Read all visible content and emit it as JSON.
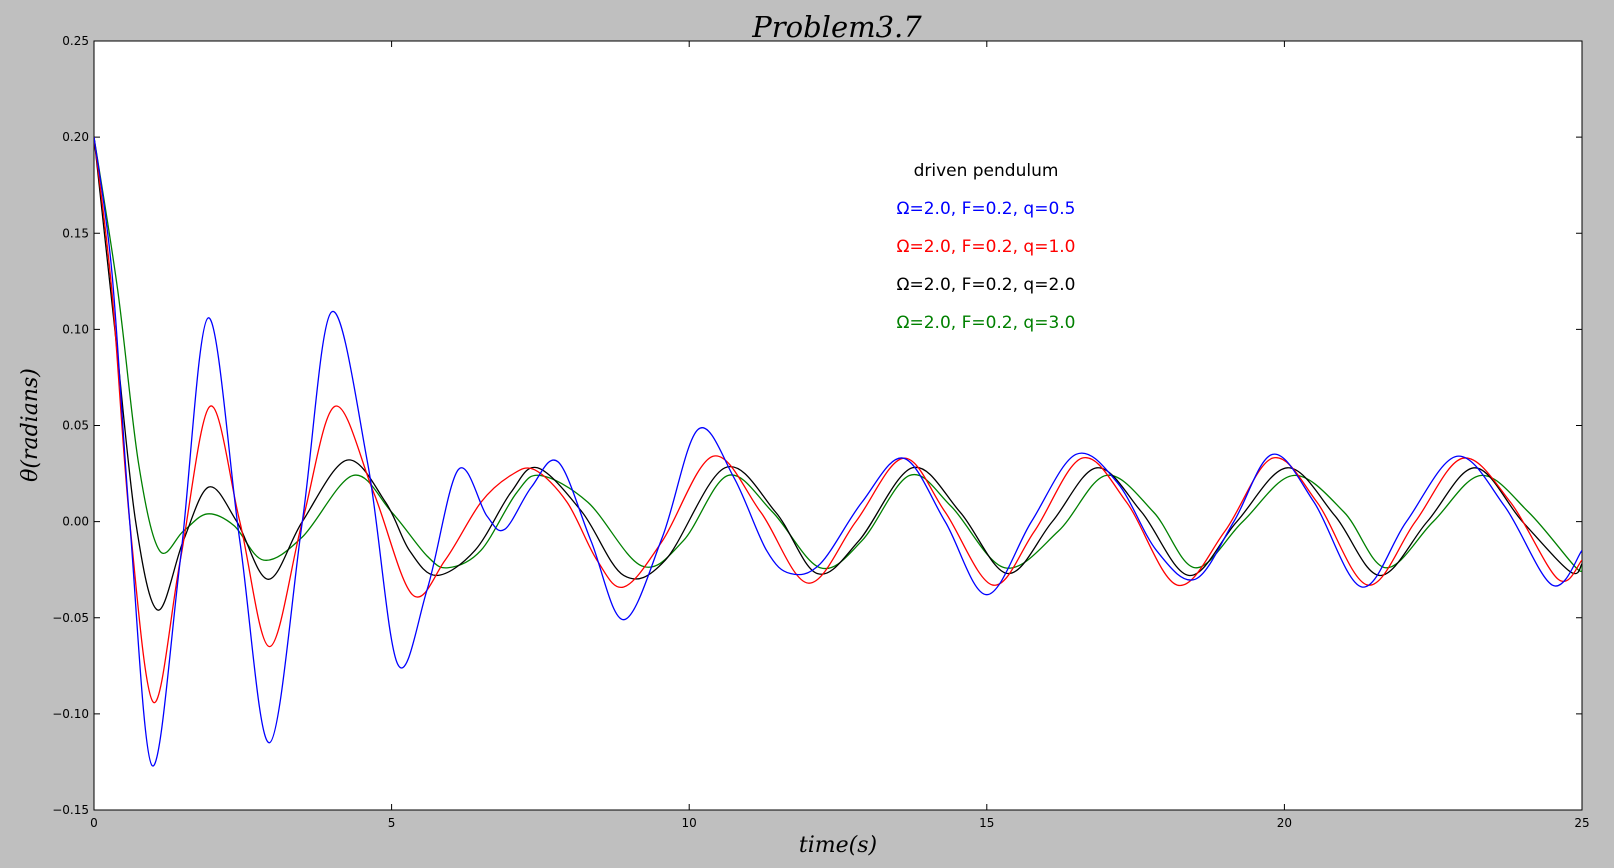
{
  "chart_data": {
    "type": "line",
    "title": "Problem3.7",
    "xlabel": "time(s)",
    "ylabel": "θ(radians)",
    "xlim": [
      0,
      25
    ],
    "ylim": [
      -0.15,
      0.25
    ],
    "xticks": [
      "0",
      "5",
      "10",
      "15",
      "20",
      "25"
    ],
    "yticks": [
      "0.25",
      "0.20",
      "0.15",
      "0.10",
      "0.05",
      "0.00",
      "−0.05",
      "−0.10",
      "−0.15"
    ],
    "grid": false,
    "legend": {
      "placement": "upper-center-right",
      "title": "driven pendulum"
    },
    "series": [
      {
        "name": "Ω=2.0, F=0.2, q=0.5",
        "color": "#0000ff",
        "x": [
          0,
          0.3,
          0.6,
          0.98,
          1.45,
          1.92,
          2.45,
          2.95,
          3.5,
          3.99,
          4.6,
          5.1,
          5.6,
          6.12,
          6.6,
          6.9,
          7.35,
          7.8,
          8.35,
          8.9,
          9.55,
          10.15,
          10.75,
          11.3,
          11.7,
          12.2,
          12.9,
          13.6,
          14.3,
          15.0,
          15.75,
          16.5,
          17.2,
          17.85,
          18.5,
          19.15,
          19.8,
          20.5,
          21.3,
          22.05,
          22.9,
          23.7,
          24.5,
          25.0
        ],
        "y": [
          0.2,
          0.13,
          0.0,
          -0.127,
          -0.02,
          0.106,
          -0.01,
          -0.115,
          0.0,
          0.109,
          0.03,
          -0.074,
          -0.035,
          0.027,
          0.003,
          -0.004,
          0.018,
          0.031,
          -0.01,
          -0.051,
          -0.008,
          0.048,
          0.023,
          -0.015,
          -0.027,
          -0.022,
          0.01,
          0.033,
          0.0,
          -0.038,
          0.0,
          0.035,
          0.02,
          -0.015,
          -0.03,
          0.0,
          0.035,
          0.01,
          -0.034,
          0.0,
          0.034,
          0.008,
          -0.033,
          -0.015
        ]
      },
      {
        "name": "Ω=2.0, F=0.2, q=1.0",
        "color": "#ff0000",
        "x": [
          0,
          0.3,
          0.6,
          1.0,
          1.45,
          1.95,
          2.45,
          2.95,
          3.5,
          4.05,
          4.7,
          5.35,
          5.9,
          6.5,
          7.0,
          7.4,
          7.95,
          8.45,
          8.9,
          9.55,
          10.4,
          11.2,
          12.0,
          12.8,
          13.6,
          14.3,
          15.1,
          15.8,
          16.6,
          17.35,
          18.2,
          19.0,
          19.8,
          20.55,
          21.4,
          22.2,
          23.0,
          23.8,
          24.6,
          25.0
        ],
        "y": [
          0.2,
          0.12,
          0.0,
          -0.094,
          -0.02,
          0.06,
          0.0,
          -0.065,
          0.0,
          0.06,
          0.015,
          -0.038,
          -0.02,
          0.01,
          0.024,
          0.027,
          0.01,
          -0.02,
          -0.034,
          -0.01,
          0.034,
          0.005,
          -0.032,
          0.0,
          0.033,
          0.005,
          -0.033,
          -0.005,
          0.033,
          0.01,
          -0.033,
          -0.005,
          0.033,
          0.01,
          -0.033,
          0.0,
          0.033,
          0.01,
          -0.03,
          -0.02
        ]
      },
      {
        "name": "Ω=2.0, F=0.2, q=2.0",
        "color": "#000000",
        "x": [
          0,
          0.35,
          0.7,
          1.07,
          1.5,
          1.93,
          2.4,
          2.93,
          3.5,
          4.25,
          4.9,
          5.3,
          5.75,
          6.4,
          7.0,
          7.45,
          8.2,
          8.9,
          9.6,
          10.6,
          11.45,
          12.15,
          12.85,
          13.75,
          14.55,
          15.35,
          16.1,
          16.85,
          17.6,
          18.4,
          19.2,
          20.05,
          20.85,
          21.6,
          22.4,
          23.2,
          24.0,
          24.8,
          25.0
        ],
        "y": [
          0.2,
          0.1,
          0.0,
          -0.046,
          -0.01,
          0.018,
          0.0,
          -0.03,
          0.0,
          0.032,
          0.01,
          -0.015,
          -0.028,
          -0.015,
          0.015,
          0.028,
          0.005,
          -0.028,
          -0.02,
          0.028,
          0.005,
          -0.027,
          -0.01,
          0.028,
          0.005,
          -0.027,
          0.0,
          0.028,
          0.005,
          -0.028,
          0.0,
          0.028,
          0.003,
          -0.028,
          0.0,
          0.028,
          0.0,
          -0.026,
          -0.022
        ]
      },
      {
        "name": "Ω=2.0, F=0.2, q=3.0",
        "color": "#008000",
        "x": [
          0,
          0.4,
          0.75,
          1.1,
          1.5,
          1.9,
          2.35,
          2.85,
          3.5,
          4.35,
          5.0,
          5.6,
          5.95,
          6.5,
          7.1,
          7.5,
          8.3,
          9.2,
          9.9,
          10.65,
          11.4,
          12.2,
          12.9,
          13.7,
          14.4,
          15.3,
          16.2,
          17.0,
          17.8,
          18.5,
          19.3,
          20.15,
          21.0,
          21.7,
          22.5,
          23.3,
          24.1,
          24.9,
          25.0
        ],
        "y": [
          0.2,
          0.12,
          0.03,
          -0.015,
          -0.005,
          0.004,
          -0.002,
          -0.02,
          -0.008,
          0.024,
          0.005,
          -0.018,
          -0.024,
          -0.015,
          0.015,
          0.024,
          0.01,
          -0.023,
          -0.01,
          0.024,
          0.005,
          -0.024,
          -0.01,
          0.024,
          0.008,
          -0.024,
          -0.005,
          0.024,
          0.005,
          -0.024,
          0.0,
          0.024,
          0.005,
          -0.024,
          0.0,
          0.024,
          0.005,
          -0.024,
          -0.023
        ]
      }
    ]
  }
}
